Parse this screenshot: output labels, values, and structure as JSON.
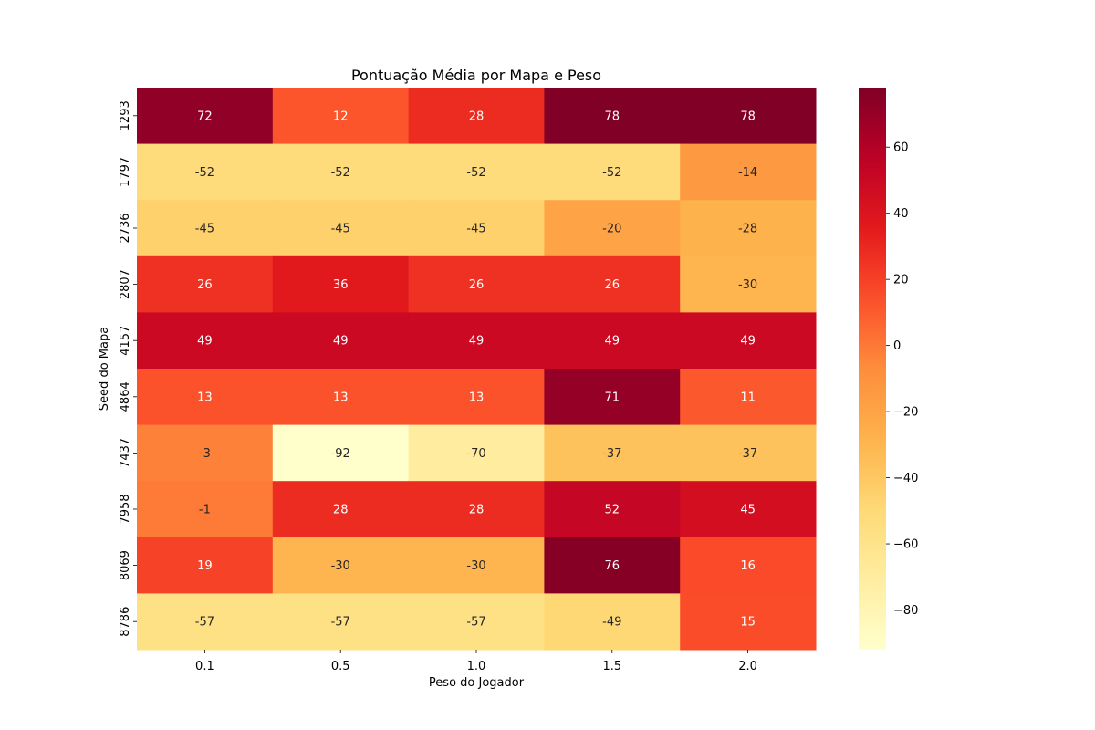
{
  "chart_data": {
    "type": "heatmap",
    "title": "Pontuação Média por Mapa e Peso",
    "xlabel": "Peso do Jogador",
    "ylabel": "Seed do Mapa",
    "x_categories": [
      "0.1",
      "0.5",
      "1.0",
      "1.5",
      "2.0"
    ],
    "y_categories": [
      "1293",
      "1797",
      "2736",
      "2807",
      "4157",
      "4864",
      "7437",
      "7958",
      "8069",
      "8786"
    ],
    "values": [
      [
        72,
        12,
        28,
        78,
        78
      ],
      [
        -52,
        -52,
        -52,
        -52,
        -14
      ],
      [
        -45,
        -45,
        -45,
        -20,
        -28
      ],
      [
        26,
        36,
        26,
        26,
        -30
      ],
      [
        49,
        49,
        49,
        49,
        49
      ],
      [
        13,
        13,
        13,
        71,
        11
      ],
      [
        -3,
        -92,
        -70,
        -37,
        -37
      ],
      [
        -1,
        28,
        28,
        52,
        45
      ],
      [
        19,
        -30,
        -30,
        76,
        16
      ],
      [
        -57,
        -57,
        -57,
        -49,
        15
      ]
    ],
    "colormap": "YlOrRd",
    "colorbar": {
      "min": -92,
      "max": 78,
      "ticks": [
        -80,
        -60,
        -40,
        -20,
        0,
        20,
        40,
        60
      ],
      "tick_labels": [
        "−80",
        "−60",
        "−40",
        "−20",
        "0",
        "20",
        "40",
        "60"
      ]
    },
    "annotate": true
  }
}
